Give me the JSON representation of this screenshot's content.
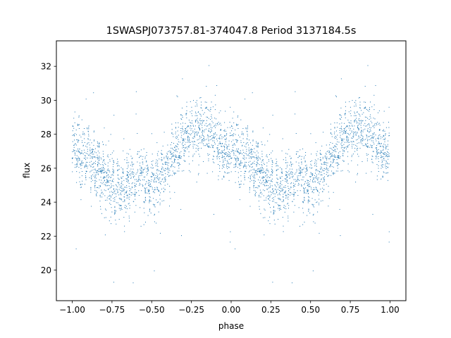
{
  "chart_data": {
    "type": "scatter",
    "title": "1SWASPJ073757.81-374047.8 Period 3137184.5s",
    "xlabel": "phase",
    "ylabel": "flux",
    "xlim": [
      -1.1,
      1.1
    ],
    "ylim": [
      18.2,
      33.5
    ],
    "xticks": [
      -1.0,
      -0.75,
      -0.5,
      -0.25,
      0.0,
      0.25,
      0.5,
      0.75,
      1.0
    ],
    "xtick_labels": [
      "−1.00",
      "−0.75",
      "−0.50",
      "−0.25",
      "0.00",
      "0.25",
      "0.50",
      "0.75",
      "1.00"
    ],
    "yticks": [
      20,
      22,
      24,
      26,
      28,
      30,
      32
    ],
    "ytick_labels": [
      "20",
      "22",
      "24",
      "26",
      "28",
      "30",
      "32"
    ],
    "grid": false,
    "marker_color": "#1f77b4",
    "trend": {
      "phase": [
        0.0,
        0.02,
        0.05,
        0.08,
        0.1,
        0.12,
        0.15,
        0.18,
        0.2,
        0.22,
        0.25,
        0.28,
        0.3,
        0.33,
        0.36,
        0.4,
        0.43,
        0.45,
        0.48,
        0.5,
        0.53,
        0.56,
        0.6,
        0.63,
        0.66,
        0.7,
        0.73,
        0.76,
        0.8,
        0.83,
        0.86,
        0.9,
        0.93,
        0.96,
        1.0
      ],
      "flux": [
        27.6,
        27.2,
        26.5,
        26.8,
        27.0,
        26.6,
        26.0,
        25.6,
        25.3,
        25.0,
        24.8,
        24.5,
        24.6,
        24.8,
        25.0,
        25.6,
        25.8,
        25.5,
        25.2,
        25.0,
        25.2,
        25.6,
        26.2,
        26.8,
        27.2,
        27.8,
        28.0,
        28.2,
        28.4,
        28.3,
        28.1,
        27.8,
        27.4,
        27.0,
        26.9
      ]
    },
    "n_points": 3600
  }
}
